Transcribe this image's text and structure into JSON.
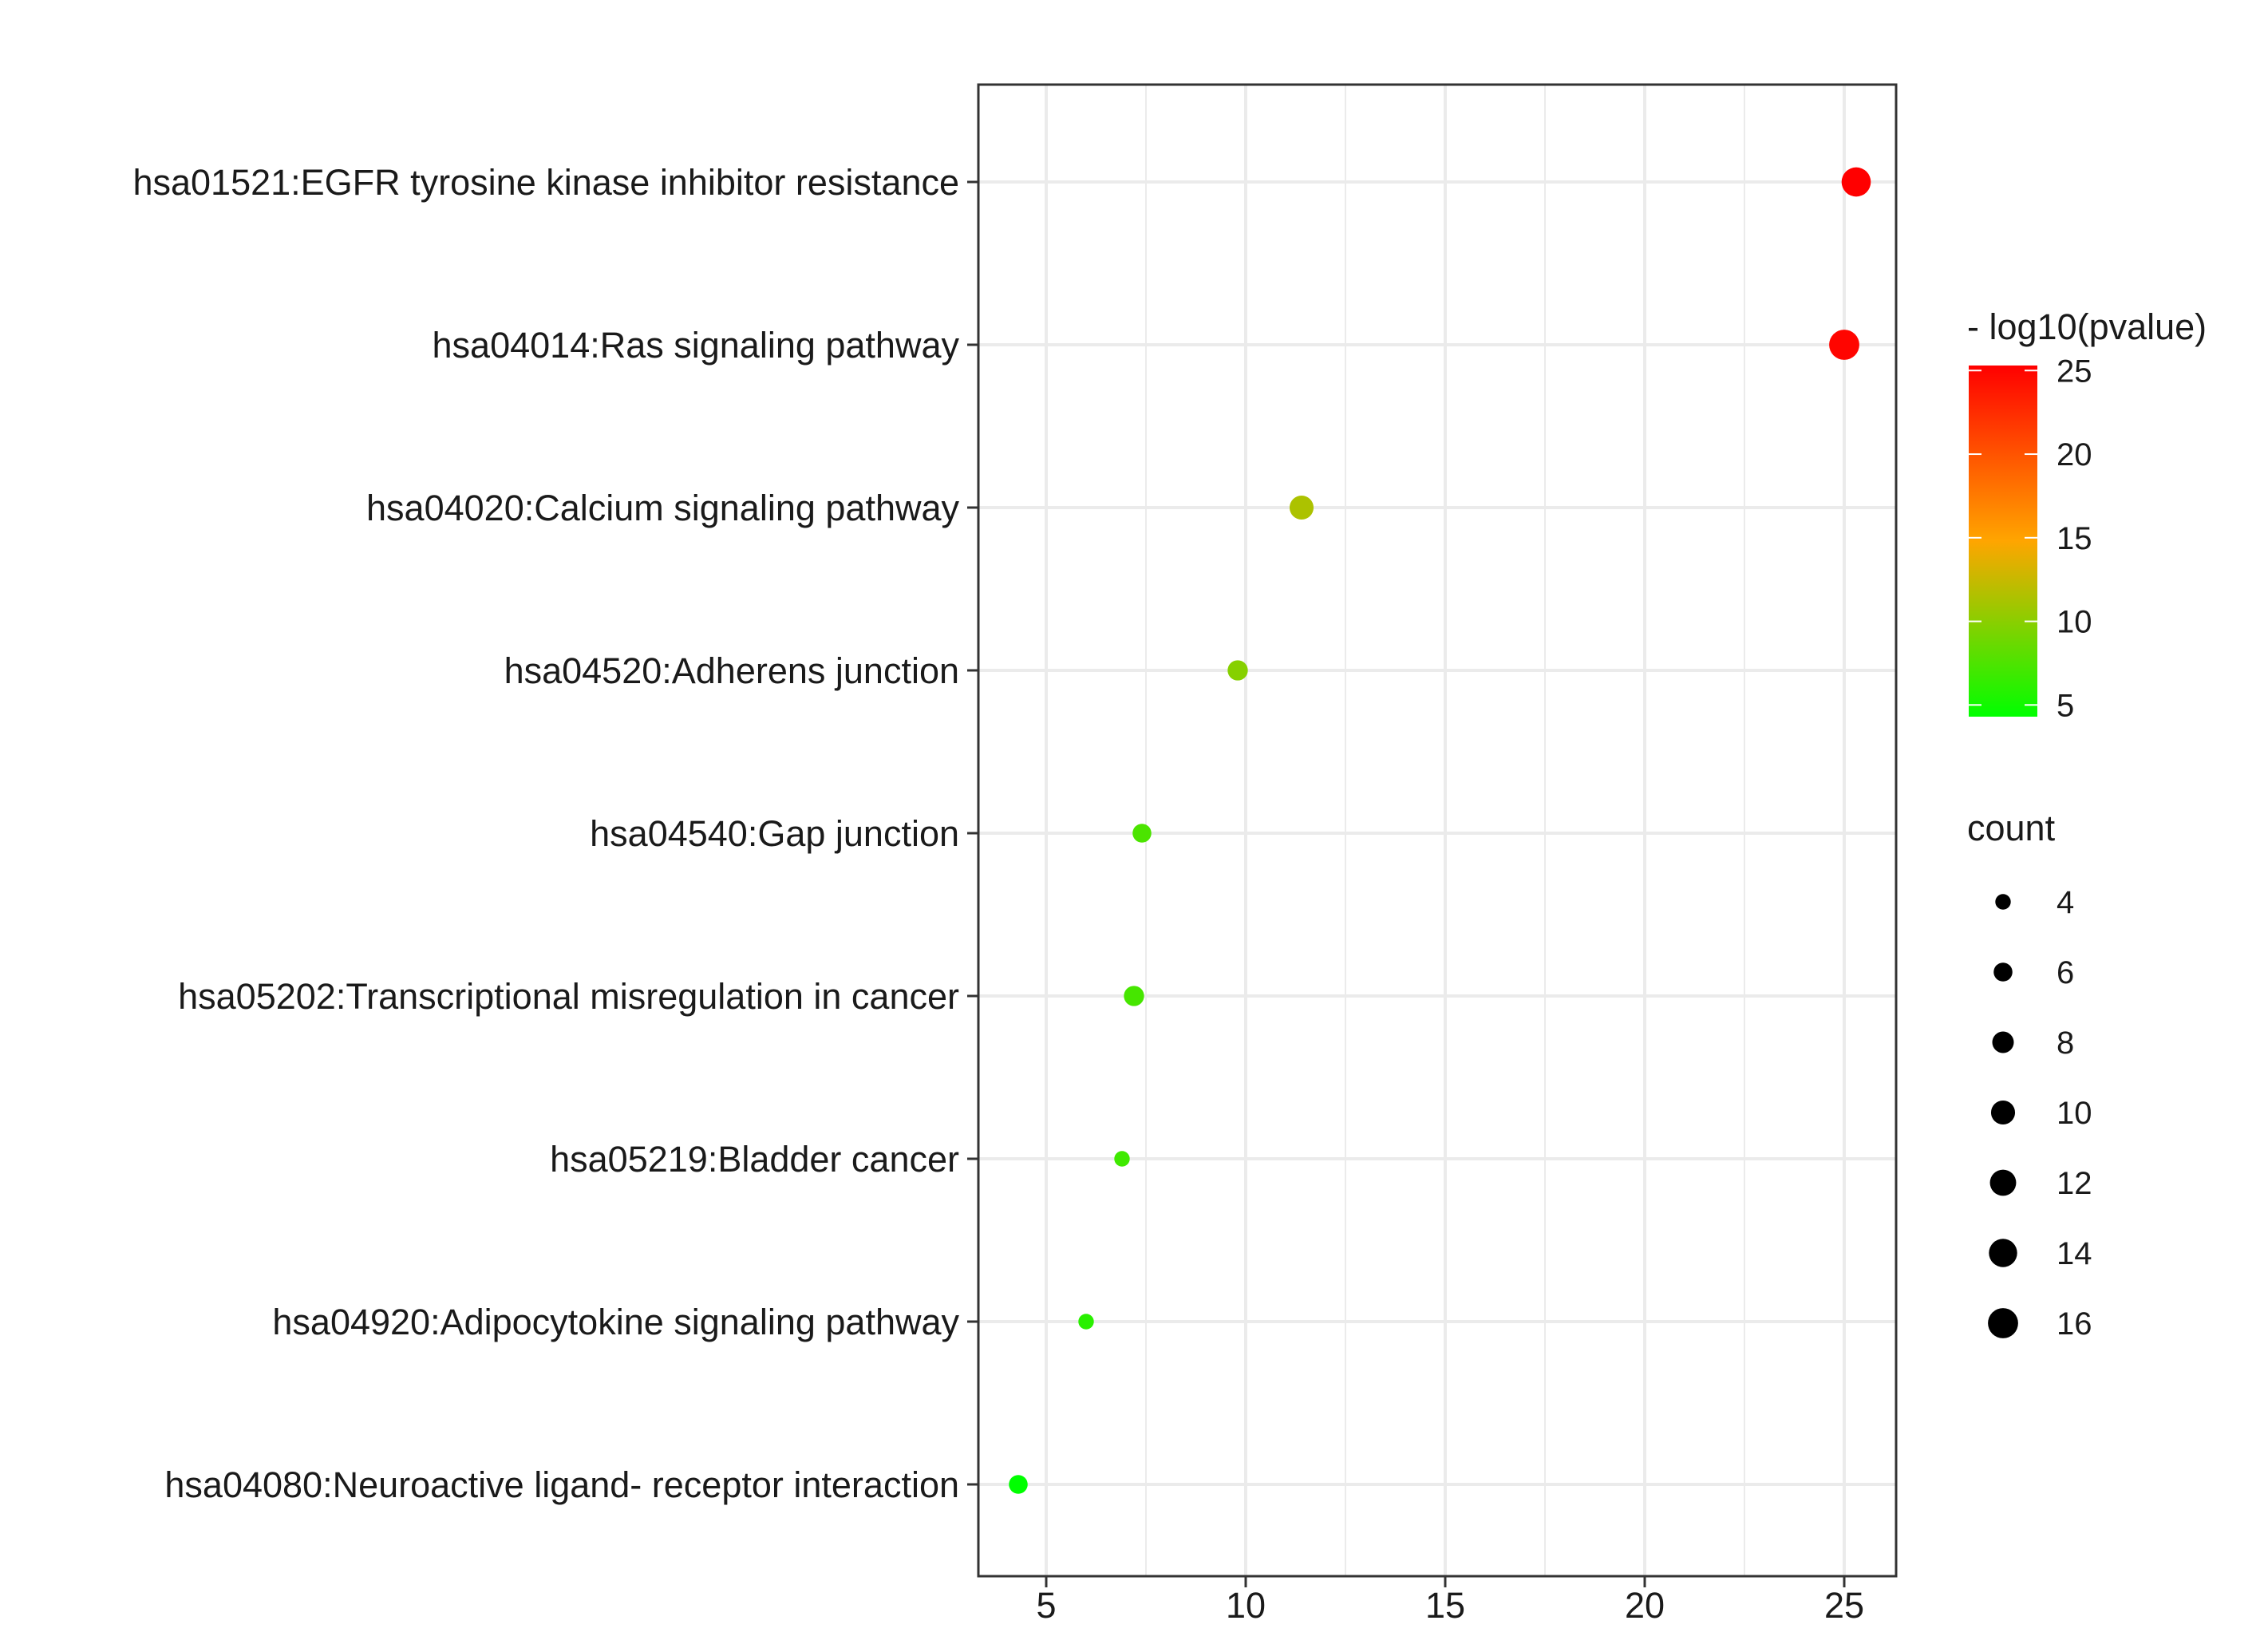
{
  "chart_data": {
    "type": "scatter",
    "title": "",
    "xlabel": "",
    "ylabel": "",
    "xlim": [
      3.3,
      26.3
    ],
    "x_ticks": [
      5,
      10,
      15,
      20,
      25
    ],
    "grid": true,
    "categories": [
      "hsa01521:EGFR tyrosine kinase inhibitor resistance",
      "hsa04014:Ras signaling pathway",
      "hsa04020:Calcium signaling pathway",
      "hsa04520:Adherens junction",
      "hsa04540:Gap junction",
      "hsa05202:Transcriptional misregulation in cancer",
      "hsa05219:Bladder cancer",
      "hsa04920:Adipocytokine signaling pathway",
      "hsa04080:Neuroactive ligand- receptor interaction"
    ],
    "points": [
      {
        "x": 25.3,
        "count": 15,
        "color_value": 25.3
      },
      {
        "x": 25.0,
        "count": 16,
        "color_value": 25.0
      },
      {
        "x": 11.4,
        "count": 10,
        "color_value": 11.4
      },
      {
        "x": 9.8,
        "count": 7,
        "color_value": 9.8
      },
      {
        "x": 7.4,
        "count": 6,
        "color_value": 7.4
      },
      {
        "x": 7.2,
        "count": 7,
        "color_value": 7.2
      },
      {
        "x": 6.9,
        "count": 4,
        "color_value": 6.9
      },
      {
        "x": 6.0,
        "count": 4,
        "color_value": 6.0
      },
      {
        "x": 4.3,
        "count": 6,
        "color_value": 4.3
      }
    ],
    "color_legend": {
      "title": "- log10(pvalue)",
      "ticks": [
        25,
        20,
        15,
        10,
        5
      ],
      "range": [
        4.3,
        25.3
      ],
      "colors": [
        "#00ff00",
        "#ffa500",
        "#ff0000"
      ]
    },
    "size_legend": {
      "title": "count",
      "values": [
        4,
        6,
        8,
        10,
        12,
        14,
        16
      ]
    },
    "legend_position": "right"
  }
}
